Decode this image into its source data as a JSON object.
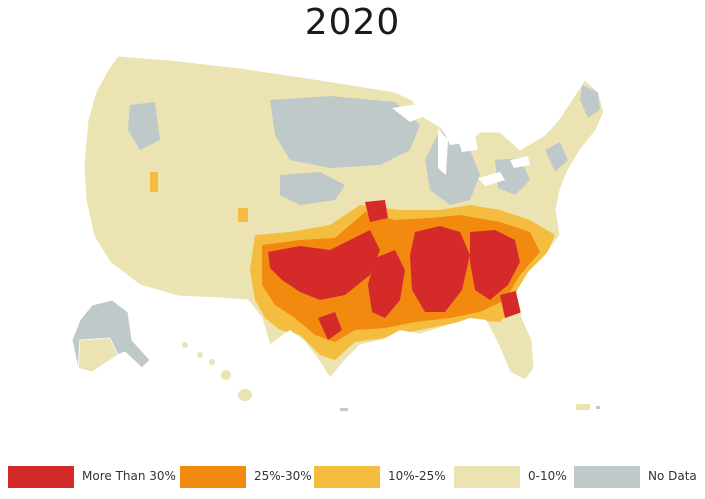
{
  "title": "2020",
  "colors": {
    "more_than_30": "#d42a2a",
    "p25_30": "#f28a10",
    "p10_25": "#f5bd40",
    "p0_10": "#ebe3b1",
    "no_data": "#bfc9c9",
    "border": "#ffffff"
  },
  "legend": [
    {
      "label": "More Than 30%",
      "color": "#d42a2a"
    },
    {
      "label": "25%-30%",
      "color": "#f28a10"
    },
    {
      "label": "10%-25%",
      "color": "#f5bd40"
    },
    {
      "label": "0-10%",
      "color": "#ebe3b1"
    },
    {
      "label": "No Data",
      "color": "#bfc9c9"
    }
  ]
}
